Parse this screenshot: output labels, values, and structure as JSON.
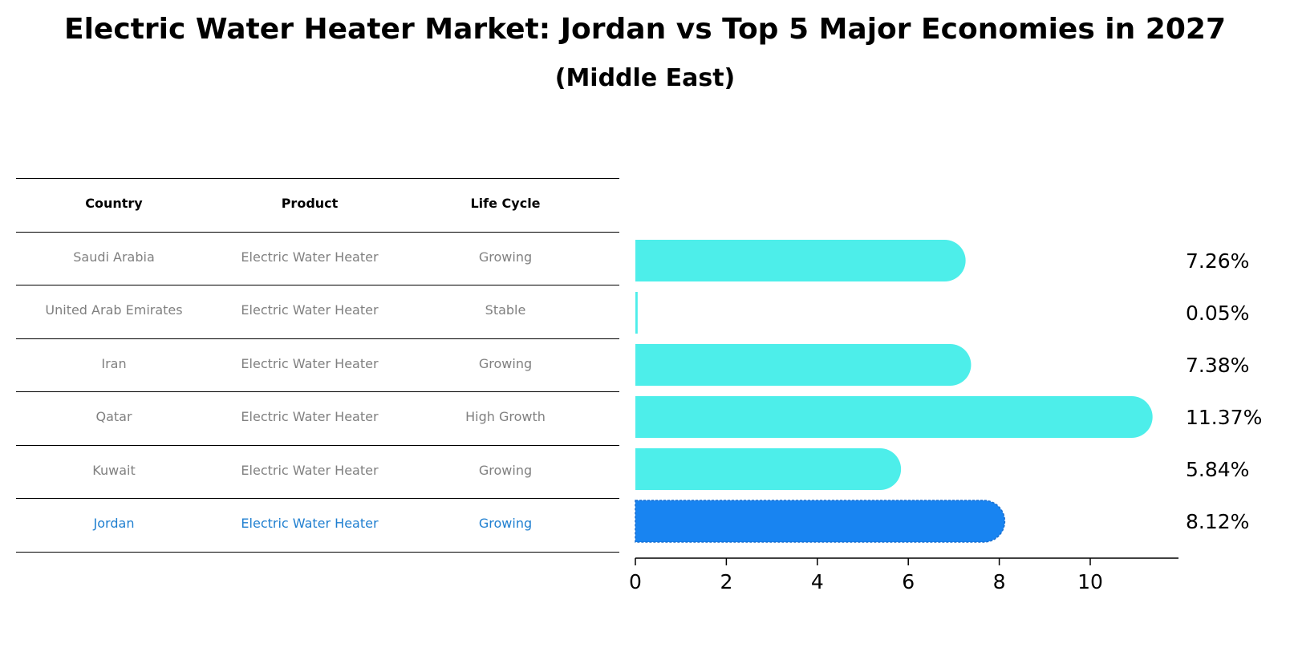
{
  "title": "Electric Water Heater Market: Jordan vs Top 5 Major Economies in 2027",
  "subtitle": "(Middle East)",
  "colors": {
    "bar": "#4deeea",
    "highlight_bar": "#1884f1",
    "row_text": "#808080",
    "highlight_text": "#1f7fd0"
  },
  "table": {
    "headers": [
      "Country",
      "Product",
      "Life Cycle"
    ],
    "rows": [
      {
        "country": "Saudi Arabia",
        "product": "Electric Water Heater",
        "life_cycle": "Growing",
        "highlight": false
      },
      {
        "country": "United Arab Emirates",
        "product": "Electric Water Heater",
        "life_cycle": "Stable",
        "highlight": false
      },
      {
        "country": "Iran",
        "product": "Electric Water Heater",
        "life_cycle": "Growing",
        "highlight": false
      },
      {
        "country": "Qatar",
        "product": "Electric Water Heater",
        "life_cycle": "High Growth",
        "highlight": false
      },
      {
        "country": "Kuwait",
        "product": "Electric Water Heater",
        "life_cycle": "Growing",
        "highlight": false
      },
      {
        "country": "Jordan",
        "product": "Electric Water Heater",
        "life_cycle": "Growing",
        "highlight": true
      }
    ]
  },
  "chart_data": {
    "type": "bar",
    "orientation": "horizontal",
    "categories": [
      "Saudi Arabia",
      "United Arab Emirates",
      "Iran",
      "Qatar",
      "Kuwait",
      "Jordan"
    ],
    "values": [
      7.26,
      0.05,
      7.38,
      11.37,
      5.84,
      8.12
    ],
    "value_labels": [
      "7.26%",
      "0.05%",
      "7.38%",
      "11.37%",
      "5.84%",
      "8.12%"
    ],
    "highlight": "Jordan",
    "xticks": [
      0,
      2,
      4,
      6,
      8,
      10
    ],
    "xlim": [
      0,
      11.95
    ],
    "grid": false,
    "legend": "none"
  }
}
